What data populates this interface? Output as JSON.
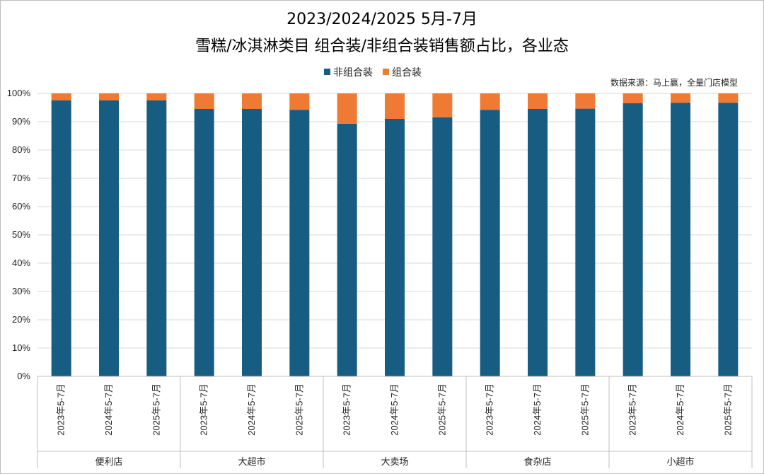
{
  "chart_data": {
    "type": "bar",
    "stacked": true,
    "title": "2023/2024/2025 5月-7月",
    "subtitle": "雪糕/冰淇淋类目 组合装/非组合装销售额占比，各业态",
    "source": "数据来源：马上赢，全量门店模型",
    "legend_position": "top-center",
    "grid": true,
    "ylim": [
      0,
      100
    ],
    "y_ticks": [
      "0%",
      "10%",
      "20%",
      "30%",
      "40%",
      "50%",
      "60%",
      "70%",
      "80%",
      "90%",
      "100%"
    ],
    "groups": [
      "便利店",
      "大超市",
      "大卖场",
      "食杂店",
      "小超市"
    ],
    "categories": [
      "2023年5-7月",
      "2024年5-7月",
      "2025年5-7月",
      "2023年5-7月",
      "2024年5-7月",
      "2025年5-7月",
      "2023年5-7月",
      "2024年5-7月",
      "2025年5-7月",
      "2023年5-7月",
      "2024年5-7月",
      "2025年5-7月",
      "2023年5-7月",
      "2024年5-7月",
      "2025年5-7月"
    ],
    "series": [
      {
        "name": "非组合装",
        "color": "#175d82",
        "values": [
          97.5,
          97.5,
          97.5,
          94.5,
          94.5,
          94.2,
          89.3,
          91.0,
          91.5,
          94.2,
          94.5,
          94.6,
          96.5,
          96.7,
          96.7
        ]
      },
      {
        "name": "组合装",
        "color": "#ee7a33",
        "values": [
          2.5,
          2.5,
          2.5,
          5.5,
          5.5,
          5.8,
          10.7,
          9.0,
          8.5,
          5.8,
          5.5,
          5.4,
          3.5,
          3.3,
          3.3
        ]
      }
    ]
  }
}
